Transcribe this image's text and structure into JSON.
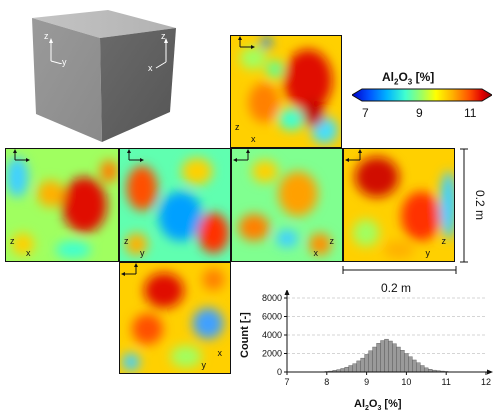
{
  "colorbar": {
    "title_prefix": "Al",
    "title_sub1": "2",
    "title_mid": "O",
    "title_sub2": "3",
    "title_suffix": " [%]",
    "ticks": [
      "7",
      "9",
      "11"
    ],
    "colors": [
      "#0000c8",
      "#0050ff",
      "#00b4ff",
      "#40ffd0",
      "#a0ff60",
      "#ffff00",
      "#ffb000",
      "#ff5000",
      "#e00000",
      "#900000"
    ]
  },
  "faces": {
    "top": {
      "axis_v": "z",
      "axis_h": "x"
    },
    "left": {
      "axis_v": "z",
      "axis_h": "x"
    },
    "front": {
      "axis_v": "z",
      "axis_h": "y"
    },
    "right": {
      "axis_v": "z",
      "axis_h": "x"
    },
    "back": {
      "axis_v": "z",
      "axis_h": "y"
    },
    "bottom": {
      "axis_v": "x",
      "axis_h": "y"
    }
  },
  "cube": {
    "left_face_axes": {
      "v": "z",
      "h": "y"
    },
    "right_face_axes": {
      "v": "z",
      "h": "x"
    }
  },
  "scales": {
    "vertical": "0.2 m",
    "horizontal": "0.2 m"
  },
  "chart_data": {
    "type": "bar",
    "title": "",
    "xlabel_prefix": "Al",
    "xlabel_sub1": "2",
    "xlabel_mid": "O",
    "xlabel_sub2": "3",
    "xlabel_suffix": " [%]",
    "ylabel": "Count [-]",
    "xlim": [
      7,
      12
    ],
    "ylim": [
      0,
      8000
    ],
    "xticks": [
      "7",
      "8",
      "9",
      "10",
      "11",
      "12"
    ],
    "yticks": [
      "0",
      "2000",
      "4000",
      "6000",
      "8000"
    ],
    "grid": true,
    "bin_width": 0.1,
    "x": [
      7.9,
      8.0,
      8.1,
      8.2,
      8.3,
      8.4,
      8.5,
      8.6,
      8.7,
      8.8,
      8.9,
      9.0,
      9.1,
      9.2,
      9.3,
      9.4,
      9.5,
      9.6,
      9.7,
      9.8,
      9.9,
      10.0,
      10.1,
      10.2,
      10.3,
      10.4,
      10.5,
      10.6,
      10.7,
      10.8,
      10.9,
      11.0,
      11.1
    ],
    "values": [
      30,
      60,
      100,
      180,
      260,
      380,
      520,
      700,
      900,
      1200,
      1500,
      1900,
      2300,
      2700,
      3100,
      3400,
      3550,
      3350,
      3050,
      2700,
      2350,
      2000,
      1650,
      1300,
      1000,
      700,
      450,
      300,
      200,
      150,
      100,
      60,
      30
    ]
  }
}
